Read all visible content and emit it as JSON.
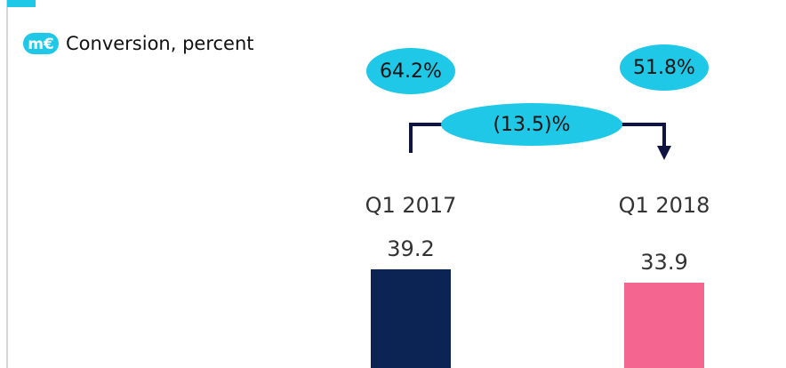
{
  "chart_data": {
    "type": "bar",
    "unit": "m€",
    "label": "Conversion, percent",
    "categories": [
      "Q1 2017",
      "Q1 2018"
    ],
    "values": [
      39.2,
      33.9
    ],
    "colors": [
      "#0b2454",
      "#f46590"
    ],
    "ylim": [
      0,
      40
    ],
    "annotations": [
      "64.2%",
      "51.8%",
      "(13.5)%"
    ]
  }
}
